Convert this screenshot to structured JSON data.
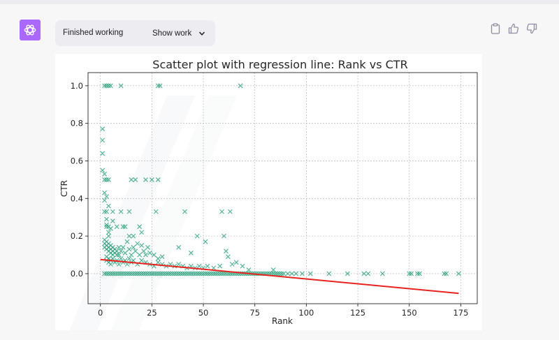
{
  "window": {
    "status_label": "Finished working",
    "show_work_label": "Show work"
  },
  "icons": {
    "avatar": "openai-logo-icon",
    "toggle": "chevron-down-icon",
    "copy": "clipboard-icon",
    "like": "thumbs-up-icon",
    "dislike": "thumbs-down-icon"
  },
  "colors": {
    "avatar_bg": "#ab68ff",
    "points": "#2ca07d",
    "regression_line": "#e8231e"
  },
  "chart_data": {
    "type": "scatter",
    "title": "Scatter plot with regression line: Rank vs CTR",
    "xlabel": "Rank",
    "ylabel": "CTR",
    "xlim": [
      -6,
      183
    ],
    "ylim": [
      -0.16,
      1.07
    ],
    "xticks": [
      0,
      25,
      50,
      75,
      100,
      125,
      150,
      175
    ],
    "yticks": [
      0.0,
      0.2,
      0.4,
      0.6,
      0.8,
      1.0
    ],
    "grid": true,
    "marker": "x",
    "series": [
      {
        "points": [
          [
            1,
            0.77
          ],
          [
            1,
            0.71
          ],
          [
            1,
            0.64
          ],
          [
            1,
            0.55
          ],
          [
            2,
            0.53
          ],
          [
            2,
            0.5
          ],
          [
            2,
            0.43
          ],
          [
            3,
            0.5
          ],
          [
            4,
            0.5
          ],
          [
            2,
            0.39
          ],
          [
            3,
            0.41
          ],
          [
            2,
            0.33
          ],
          [
            3,
            0.33
          ],
          [
            4,
            0.36
          ],
          [
            6,
            0.33
          ],
          [
            10,
            0.33
          ],
          [
            14,
            0.33
          ],
          [
            27,
            0.33
          ],
          [
            41,
            0.33
          ],
          [
            59,
            0.33
          ],
          [
            63,
            0.33
          ],
          [
            2,
            1.0
          ],
          [
            3,
            1.0
          ],
          [
            4,
            1.0
          ],
          [
            5,
            1.0
          ],
          [
            10,
            1.0
          ],
          [
            28,
            1.0
          ],
          [
            29,
            1.0
          ],
          [
            68,
            1.0
          ],
          [
            15,
            0.5
          ],
          [
            17,
            0.5
          ],
          [
            22,
            0.5
          ],
          [
            25,
            0.5
          ],
          [
            28,
            0.5
          ],
          [
            3,
            0.29
          ],
          [
            3,
            0.26
          ],
          [
            3,
            0.25
          ],
          [
            4,
            0.25
          ],
          [
            4,
            0.22
          ],
          [
            4,
            0.2
          ],
          [
            5,
            0.24
          ],
          [
            6,
            0.28
          ],
          [
            8,
            0.25
          ],
          [
            11,
            0.25
          ],
          [
            12,
            0.25
          ],
          [
            14,
            0.2
          ],
          [
            16,
            0.2
          ],
          [
            19,
            0.25
          ],
          [
            20,
            0.22
          ],
          [
            2,
            0.18
          ],
          [
            2,
            0.16
          ],
          [
            2,
            0.14
          ],
          [
            3,
            0.17
          ],
          [
            3,
            0.15
          ],
          [
            3,
            0.13
          ],
          [
            4,
            0.16
          ],
          [
            4,
            0.14
          ],
          [
            4,
            0.12
          ],
          [
            5,
            0.15
          ],
          [
            5,
            0.13
          ],
          [
            5,
            0.11
          ],
          [
            6,
            0.14
          ],
          [
            6,
            0.12
          ],
          [
            6,
            0.1
          ],
          [
            7,
            0.13
          ],
          [
            7,
            0.11
          ],
          [
            8,
            0.12
          ],
          [
            8,
            0.1
          ],
          [
            9,
            0.14
          ],
          [
            9,
            0.1
          ],
          [
            10,
            0.12
          ],
          [
            11,
            0.14
          ],
          [
            12,
            0.11
          ],
          [
            13,
            0.17
          ],
          [
            14,
            0.13
          ],
          [
            15,
            0.1
          ],
          [
            16,
            0.14
          ],
          [
            17,
            0.12
          ],
          [
            18,
            0.16
          ],
          [
            19,
            0.1
          ],
          [
            20,
            0.15
          ],
          [
            21,
            0.12
          ],
          [
            22,
            0.1
          ],
          [
            23,
            0.14
          ],
          [
            24,
            0.11
          ],
          [
            26,
            0.1
          ],
          [
            28,
            0.08
          ],
          [
            30,
            0.09
          ],
          [
            38,
            0.14
          ],
          [
            44,
            0.11
          ],
          [
            47,
            0.2
          ],
          [
            51,
            0.17
          ],
          [
            60,
            0.2
          ],
          [
            61,
            0.12
          ],
          [
            62,
            0.09
          ],
          [
            3,
            0.09
          ],
          [
            3,
            0.07
          ],
          [
            4,
            0.08
          ],
          [
            4,
            0.06
          ],
          [
            5,
            0.07
          ],
          [
            5,
            0.05
          ],
          [
            6,
            0.08
          ],
          [
            7,
            0.06
          ],
          [
            8,
            0.07
          ],
          [
            9,
            0.05
          ],
          [
            10,
            0.08
          ],
          [
            11,
            0.06
          ],
          [
            12,
            0.07
          ],
          [
            13,
            0.05
          ],
          [
            14,
            0.08
          ],
          [
            15,
            0.06
          ],
          [
            16,
            0.07
          ],
          [
            18,
            0.05
          ],
          [
            20,
            0.07
          ],
          [
            22,
            0.06
          ],
          [
            24,
            0.05
          ],
          [
            26,
            0.04
          ],
          [
            28,
            0.06
          ],
          [
            30,
            0.05
          ],
          [
            32,
            0.04
          ],
          [
            34,
            0.05
          ],
          [
            36,
            0.04
          ],
          [
            38,
            0.05
          ],
          [
            40,
            0.04
          ],
          [
            42,
            0.03
          ],
          [
            44,
            0.04
          ],
          [
            46,
            0.03
          ],
          [
            48,
            0.04
          ],
          [
            50,
            0.03
          ],
          [
            52,
            0.04
          ],
          [
            55,
            0.03
          ],
          [
            58,
            0.04
          ],
          [
            64,
            0.05
          ],
          [
            66,
            0.06
          ],
          [
            69,
            0.04
          ],
          [
            72,
            0.02
          ],
          [
            84,
            0.02
          ],
          [
            2,
            0.0
          ],
          [
            3,
            0.0
          ],
          [
            4,
            0.0
          ],
          [
            5,
            0.0
          ],
          [
            6,
            0.0
          ],
          [
            7,
            0.0
          ],
          [
            8,
            0.0
          ],
          [
            9,
            0.0
          ],
          [
            10,
            0.0
          ],
          [
            11,
            0.0
          ],
          [
            12,
            0.0
          ],
          [
            13,
            0.0
          ],
          [
            14,
            0.0
          ],
          [
            15,
            0.0
          ],
          [
            16,
            0.0
          ],
          [
            17,
            0.0
          ],
          [
            18,
            0.0
          ],
          [
            19,
            0.0
          ],
          [
            20,
            0.0
          ],
          [
            21,
            0.0
          ],
          [
            22,
            0.0
          ],
          [
            23,
            0.0
          ],
          [
            24,
            0.0
          ],
          [
            25,
            0.0
          ],
          [
            26,
            0.0
          ],
          [
            27,
            0.0
          ],
          [
            28,
            0.0
          ],
          [
            29,
            0.0
          ],
          [
            30,
            0.0
          ],
          [
            31,
            0.0
          ],
          [
            32,
            0.0
          ],
          [
            33,
            0.0
          ],
          [
            34,
            0.0
          ],
          [
            35,
            0.0
          ],
          [
            36,
            0.0
          ],
          [
            37,
            0.0
          ],
          [
            38,
            0.0
          ],
          [
            39,
            0.0
          ],
          [
            40,
            0.0
          ],
          [
            41,
            0.0
          ],
          [
            42,
            0.0
          ],
          [
            43,
            0.0
          ],
          [
            44,
            0.0
          ],
          [
            45,
            0.0
          ],
          [
            46,
            0.0
          ],
          [
            47,
            0.0
          ],
          [
            48,
            0.0
          ],
          [
            49,
            0.0
          ],
          [
            50,
            0.0
          ],
          [
            51,
            0.0
          ],
          [
            52,
            0.0
          ],
          [
            53,
            0.0
          ],
          [
            54,
            0.0
          ],
          [
            55,
            0.0
          ],
          [
            56,
            0.0
          ],
          [
            57,
            0.0
          ],
          [
            58,
            0.0
          ],
          [
            59,
            0.0
          ],
          [
            60,
            0.0
          ],
          [
            61,
            0.0
          ],
          [
            62,
            0.0
          ],
          [
            63,
            0.0
          ],
          [
            64,
            0.0
          ],
          [
            65,
            0.0
          ],
          [
            66,
            0.0
          ],
          [
            67,
            0.0
          ],
          [
            68,
            0.0
          ],
          [
            69,
            0.0
          ],
          [
            70,
            0.0
          ],
          [
            71,
            0.0
          ],
          [
            72,
            0.0
          ],
          [
            73,
            0.0
          ],
          [
            74,
            0.0
          ],
          [
            75,
            0.0
          ],
          [
            76,
            0.0
          ],
          [
            77,
            0.0
          ],
          [
            78,
            0.0
          ],
          [
            79,
            0.0
          ],
          [
            80,
            0.0
          ],
          [
            81,
            0.0
          ],
          [
            82,
            0.0
          ],
          [
            83,
            0.0
          ],
          [
            84,
            0.0
          ],
          [
            85,
            0.0
          ],
          [
            86,
            0.0
          ],
          [
            87,
            0.0
          ],
          [
            88,
            0.0
          ],
          [
            89,
            0.0
          ],
          [
            91,
            0.0
          ],
          [
            93,
            0.0
          ],
          [
            95,
            0.0
          ],
          [
            98,
            0.0
          ],
          [
            102,
            0.0
          ],
          [
            111,
            0.0
          ],
          [
            120,
            0.0
          ],
          [
            128,
            0.0
          ],
          [
            130,
            0.0
          ],
          [
            137,
            0.0
          ],
          [
            150,
            0.0
          ],
          [
            151,
            0.0
          ],
          [
            154,
            0.0
          ],
          [
            155,
            0.0
          ],
          [
            167,
            0.0
          ],
          [
            168,
            0.0
          ],
          [
            174,
            0.0
          ]
        ]
      }
    ],
    "regression_line": {
      "x": [
        0,
        174
      ],
      "y": [
        0.075,
        -0.105
      ]
    }
  }
}
